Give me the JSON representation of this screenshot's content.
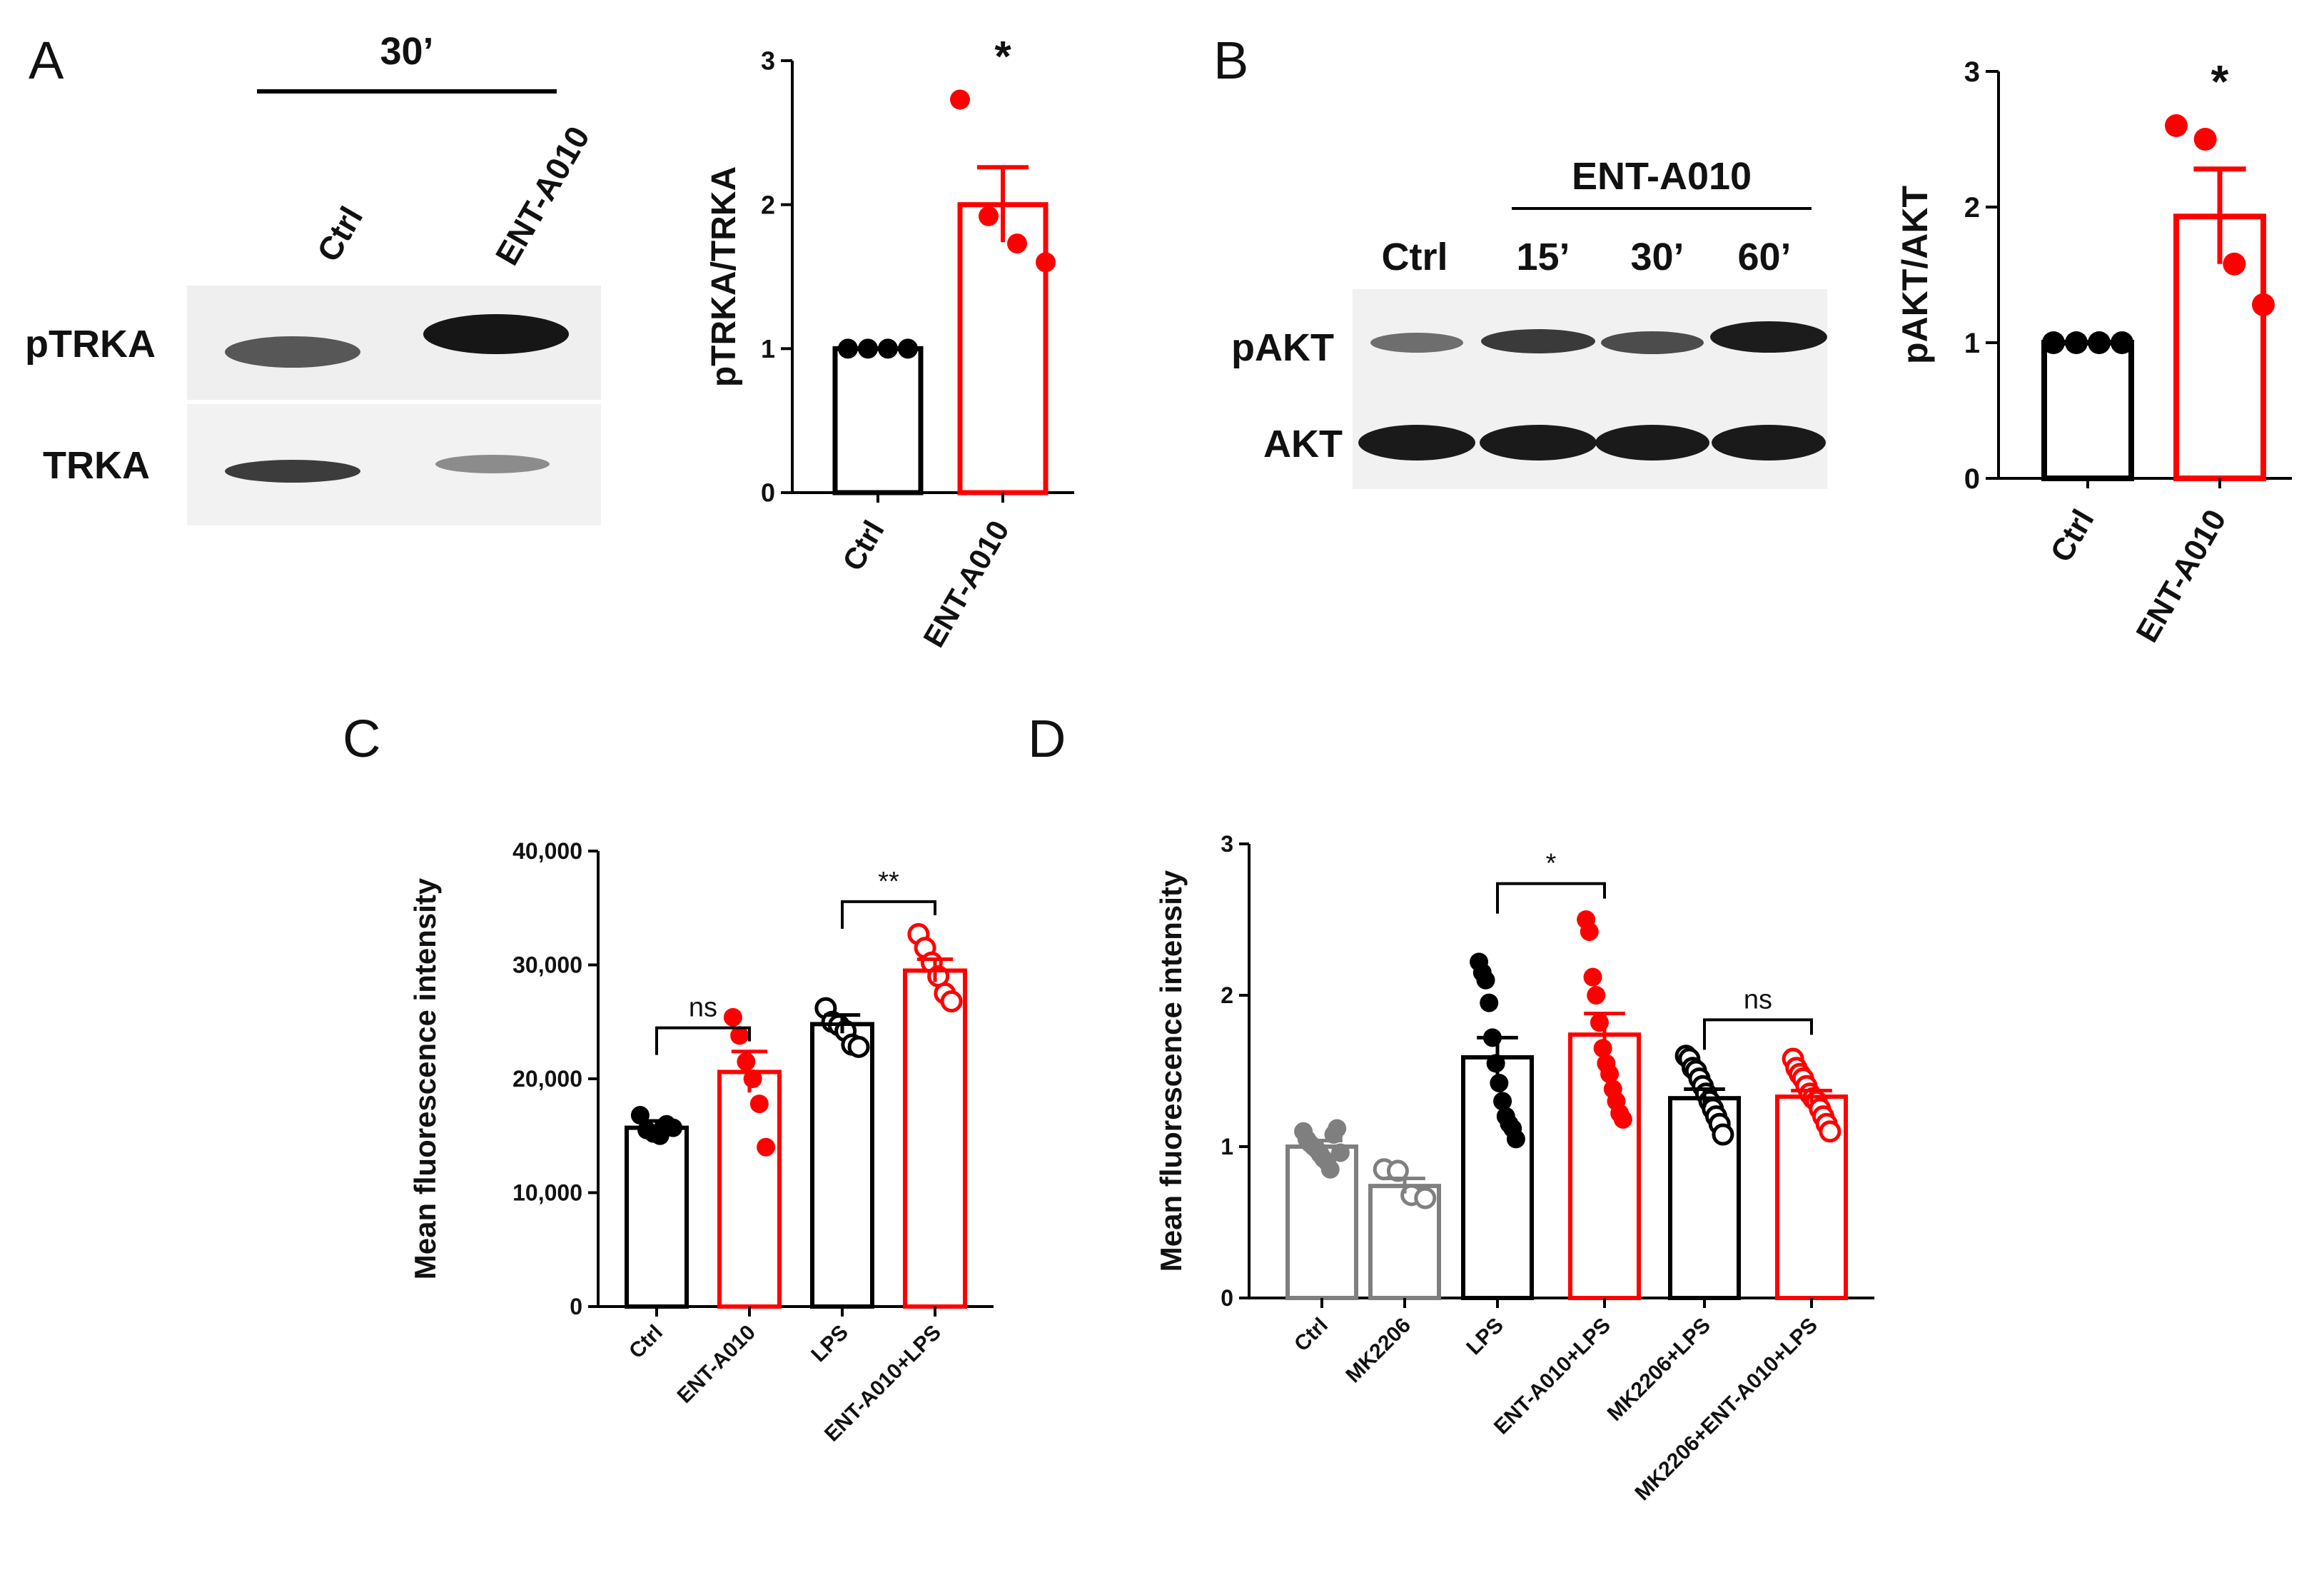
{
  "panels": {
    "A": {
      "letter": "A",
      "blot": {
        "timepoint": "30’",
        "lanes": [
          "Ctrl",
          "ENT-A010"
        ],
        "rows": [
          "pTRKA",
          "TRKA"
        ]
      }
    },
    "B": {
      "letter": "B",
      "blot": {
        "group": "ENT-A010",
        "lanes": [
          "Ctrl",
          "15’",
          "30’",
          "60’"
        ],
        "rows": [
          "pAKT",
          "AKT"
        ]
      }
    },
    "C": {
      "letter": "C"
    },
    "D": {
      "letter": "D"
    }
  },
  "chart_data": [
    {
      "panel": "A",
      "type": "bar",
      "categories": [
        "Ctrl",
        "ENT-A010"
      ],
      "colors": [
        "#000000",
        "#ff0000"
      ],
      "values": [
        1.0,
        2.0
      ],
      "sem": [
        0,
        0.26
      ],
      "points": [
        [
          1.0,
          1.0,
          1.0,
          1.0
        ],
        [
          2.73,
          1.92,
          1.73,
          1.6
        ]
      ],
      "point_style": [
        "filled",
        "filled"
      ],
      "ylabel": "pTRKA/TRKA",
      "ylim": [
        0,
        3
      ],
      "yticks": [
        0,
        1,
        2,
        3
      ],
      "ytick_labels": [
        "0",
        "1",
        "2",
        "3"
      ],
      "significance": [
        {
          "groups": [
            1
          ],
          "label": "*",
          "bracket": false
        }
      ]
    },
    {
      "panel": "B",
      "type": "bar",
      "categories": [
        "Ctrl",
        "ENT-A010"
      ],
      "colors": [
        "#000000",
        "#ff0000"
      ],
      "values": [
        1.0,
        1.93
      ],
      "sem": [
        0,
        0.35
      ],
      "points": [
        [
          1.0,
          1.0,
          1.0,
          1.0
        ],
        [
          2.6,
          2.5,
          1.58,
          1.28
        ]
      ],
      "point_style": [
        "filled",
        "filled"
      ],
      "ylabel": "pAKT/AKT",
      "ylim": [
        0,
        3
      ],
      "yticks": [
        0,
        1,
        2,
        3
      ],
      "ytick_labels": [
        "0",
        "1",
        "2",
        "3"
      ],
      "significance": [
        {
          "groups": [
            1
          ],
          "label": "*",
          "bracket": false
        }
      ]
    },
    {
      "panel": "C",
      "type": "bar",
      "categories": [
        "Ctrl",
        "ENT-A010",
        "LPS",
        "ENT-A010+LPS"
      ],
      "colors": [
        "#000000",
        "#ff0000",
        "#000000",
        "#ff0000"
      ],
      "values": [
        15700,
        20600,
        24800,
        29500
      ],
      "sem": [
        600,
        1800,
        800,
        1000
      ],
      "points": [
        [
          16800,
          15500,
          15200,
          15000,
          16000,
          15700
        ],
        [
          25400,
          23800,
          21500,
          20000,
          17800,
          14000
        ],
        [
          26200,
          25000,
          24700,
          24200,
          23000,
          22800
        ],
        [
          32700,
          31500,
          30200,
          29000,
          27500,
          26800
        ]
      ],
      "point_style": [
        "filled",
        "filled",
        "open",
        "open"
      ],
      "ylabel": "Mean fluorescence intensity",
      "ylim": [
        0,
        40000
      ],
      "yticks": [
        0,
        10000,
        20000,
        30000,
        40000
      ],
      "ytick_labels": [
        "0",
        "10,000",
        "20,000",
        "30,000",
        "40,000"
      ],
      "significance": [
        {
          "groups": [
            0,
            1
          ],
          "label": "ns",
          "bracket": true
        },
        {
          "groups": [
            2,
            3
          ],
          "label": "**",
          "bracket": true
        }
      ]
    },
    {
      "panel": "D",
      "type": "bar",
      "categories": [
        "Ctrl",
        "MK2206",
        "LPS",
        "ENT-A010+LPS",
        "MK2206+LPS",
        "MK2206+ENT-A010+LPS"
      ],
      "colors": [
        "#7f7f7f",
        "#7f7f7f",
        "#000000",
        "#ff0000",
        "#000000",
        "#ff0000"
      ],
      "values": [
        1.0,
        0.74,
        1.59,
        1.74,
        1.32,
        1.33
      ],
      "sem": [
        0.04,
        0.05,
        0.13,
        0.14,
        0.06,
        0.04
      ],
      "points": [
        [
          1.1,
          1.05,
          1.02,
          1.0,
          0.98,
          0.95,
          0.92,
          0.9,
          0.85,
          1.08,
          1.12,
          0.96
        ],
        [
          0.85,
          0.84,
          0.68,
          0.66
        ],
        [
          2.22,
          2.15,
          2.1,
          1.95,
          1.72,
          1.55,
          1.42,
          1.3,
          1.2,
          1.15,
          1.12,
          1.05
        ],
        [
          2.5,
          2.42,
          2.12,
          2.0,
          1.82,
          1.65,
          1.55,
          1.48,
          1.38,
          1.3,
          1.22,
          1.18
        ],
        [
          1.6,
          1.58,
          1.52,
          1.5,
          1.45,
          1.4,
          1.35,
          1.3,
          1.25,
          1.2,
          1.15,
          1.08
        ],
        [
          1.58,
          1.52,
          1.48,
          1.45,
          1.4,
          1.35,
          1.32,
          1.3,
          1.25,
          1.2,
          1.15,
          1.1
        ]
      ],
      "point_style": [
        "filled",
        "open",
        "filled",
        "filled",
        "open",
        "open"
      ],
      "ylabel": "Mean fluorescence intensity",
      "ylim": [
        0,
        3
      ],
      "yticks": [
        0,
        1,
        2,
        3
      ],
      "ytick_labels": [
        "0",
        "1",
        "2",
        "3"
      ],
      "significance": [
        {
          "groups": [
            2,
            3
          ],
          "label": "*",
          "bracket": true
        },
        {
          "groups": [
            4,
            5
          ],
          "label": "ns",
          "bracket": true
        }
      ]
    }
  ]
}
